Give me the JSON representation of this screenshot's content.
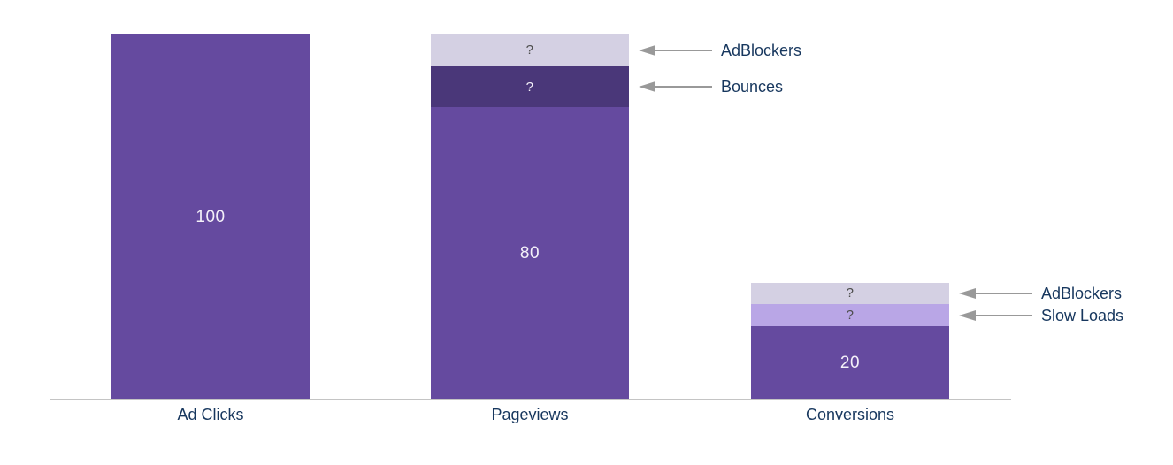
{
  "chart_data": {
    "type": "bar",
    "subtype": "stacked-funnel",
    "title": "",
    "xlabel": "",
    "ylabel": "",
    "ylim": [
      0,
      100
    ],
    "grid": false,
    "legend_position": "none",
    "categories": [
      "Ad Clicks",
      "Pageviews",
      "Conversions"
    ],
    "bars": [
      {
        "category": "Ad Clicks",
        "total": 100,
        "segments": [
          {
            "name": "Ad Clicks",
            "value": 100,
            "estimated": false,
            "label": "100",
            "colorKey": "main",
            "labelStyle": "light"
          }
        ]
      },
      {
        "category": "Pageviews",
        "total": 100,
        "segments": [
          {
            "name": "Pageviews",
            "value": 80,
            "estimated": false,
            "label": "80",
            "colorKey": "main",
            "labelStyle": "light"
          },
          {
            "name": "Bounces",
            "value": 11,
            "estimated": true,
            "label": "?",
            "colorKey": "dark",
            "labelStyle": "light",
            "callout": "Bounces"
          },
          {
            "name": "AdBlockers",
            "value": 9,
            "estimated": true,
            "label": "?",
            "colorKey": "lavender",
            "labelStyle": "dark",
            "callout": "AdBlockers"
          }
        ]
      },
      {
        "category": "Conversions",
        "total": 32,
        "segments": [
          {
            "name": "Conversions",
            "value": 20,
            "estimated": false,
            "label": "20",
            "colorKey": "main",
            "labelStyle": "light"
          },
          {
            "name": "Slow Loads",
            "value": 6,
            "estimated": true,
            "label": "?",
            "colorKey": "lightpurple",
            "labelStyle": "dark",
            "callout": "Slow Loads"
          },
          {
            "name": "AdBlockers",
            "value": 6,
            "estimated": true,
            "label": "?",
            "colorKey": "lavender",
            "labelStyle": "dark",
            "callout": "AdBlockers"
          }
        ]
      }
    ],
    "callout_labels": [
      "AdBlockers",
      "Bounces",
      "AdBlockers",
      "Slow Loads"
    ],
    "colors": {
      "main": "#654A9F",
      "dark": "#4A3779",
      "lavender": "#D4D0E3",
      "lightpurple": "#B9A6E6",
      "value_text_light": "#F4F1F9",
      "value_text_dark": "#4D4D4D",
      "category_label": "#17375E",
      "callout_label": "#17375E",
      "arrow": "#999999",
      "axis_line": "#C4C4C4"
    }
  }
}
